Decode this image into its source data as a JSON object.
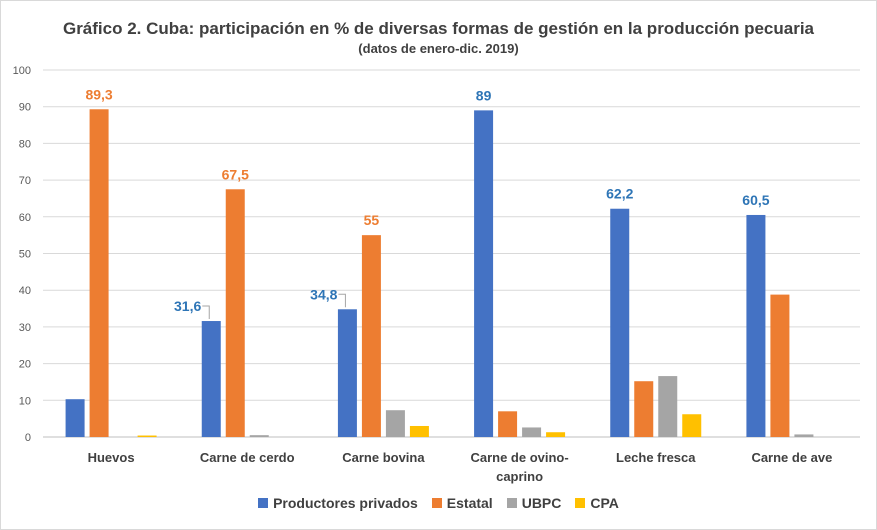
{
  "chart_data": {
    "type": "bar",
    "title": "Gráfico 2. Cuba: participación en % de diversas formas de gestión en la producción pecuaria",
    "subtitle": "(datos de enero-dic. 2019)",
    "categories": [
      "Huevos",
      "Carne de cerdo",
      "Carne bovina",
      "Carne de ovino-caprino",
      "Leche fresca",
      "Carne de ave"
    ],
    "category_lines": [
      [
        "Huevos"
      ],
      [
        "Carne de cerdo"
      ],
      [
        "Carne bovina"
      ],
      [
        "Carne de ovino-",
        "caprino"
      ],
      [
        "Leche fresca"
      ],
      [
        "Carne de ave"
      ]
    ],
    "series": [
      {
        "name": "Productores privados",
        "color": "#4472c4",
        "values": [
          10.3,
          31.6,
          34.8,
          89,
          62.2,
          60.5
        ]
      },
      {
        "name": "Estatal",
        "color": "#ed7d31",
        "values": [
          89.3,
          67.5,
          55,
          7,
          15.2,
          38.8
        ]
      },
      {
        "name": "UBPC",
        "color": "#a5a5a5",
        "values": [
          0,
          0.5,
          7.3,
          2.6,
          16.6,
          0.7
        ]
      },
      {
        "name": "CPA",
        "color": "#ffc000",
        "values": [
          0.4,
          0,
          3,
          1.3,
          6.2,
          0
        ]
      }
    ],
    "data_labels": [
      {
        "series": 1,
        "category": 0,
        "text": "89,3"
      },
      {
        "series": 0,
        "category": 1,
        "text": "31,6"
      },
      {
        "series": 1,
        "category": 1,
        "text": "67,5"
      },
      {
        "series": 0,
        "category": 2,
        "text": "34,8"
      },
      {
        "series": 1,
        "category": 2,
        "text": "55"
      },
      {
        "series": 0,
        "category": 3,
        "text": "89"
      },
      {
        "series": 0,
        "category": 4,
        "text": "62,2"
      },
      {
        "series": 0,
        "category": 5,
        "text": "60,5"
      }
    ],
    "ylim": [
      0,
      100
    ],
    "yticks": [
      0,
      10,
      20,
      30,
      40,
      50,
      60,
      70,
      80,
      90,
      100
    ],
    "grid": true,
    "legend": "bottom"
  }
}
